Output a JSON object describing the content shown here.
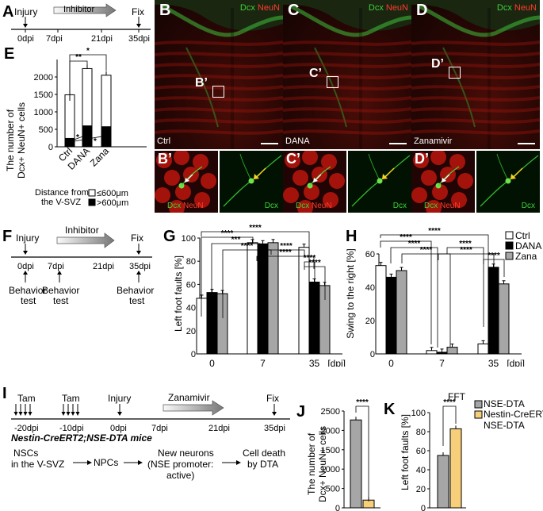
{
  "panels": {
    "A": "A",
    "B": "B",
    "C": "C",
    "D": "D",
    "E": "E",
    "F": "F",
    "G": "G",
    "H": "H",
    "I": "I",
    "J": "J",
    "K": "K"
  },
  "timelineA": {
    "injury": "Injury",
    "inhibitor": "Inhibitor",
    "fix": "Fix",
    "ticks": [
      "0dpi",
      "7dpi",
      "21dpi",
      "35dpi"
    ]
  },
  "micro": {
    "dcx": "Dcx",
    "neun": "NeuN",
    "B_cond": "Ctrl",
    "C_cond": "DANA",
    "D_cond": "Zanamivir",
    "B_inset": "B’",
    "C_inset": "C’",
    "D_inset": "D’"
  },
  "timelineF": {
    "injury": "Injury",
    "inhibitor": "Inhibitor",
    "fix": "Fix",
    "ticks": [
      "0dpi",
      "7dpi",
      "21dpi",
      "35dpi"
    ],
    "behavior": [
      "Behavior",
      "test"
    ]
  },
  "timelineI": {
    "tam": "Tam",
    "injury": "Injury",
    "zana": "Zanamivir",
    "fix": "Fix",
    "ticks": [
      "-20dpi",
      "-10dpi",
      "0dpi",
      "7dpi",
      "21dpi",
      "35dpi"
    ],
    "mouse": "Nestin-CreERT2;NSE-DTA mice",
    "flow1": [
      "NSCs",
      "in the V-SVZ"
    ],
    "flow2": "NPCs",
    "flow3": [
      "New neurons",
      "(NSE promoter:",
      "active)"
    ],
    "flow4": [
      "Cell death",
      "by DTA"
    ]
  },
  "legendE": {
    "title": [
      "Distance from",
      "the V-SVZ"
    ],
    "items": [
      "≤600μm",
      ">600μm"
    ]
  },
  "legendGH": [
    "Ctrl",
    "DANA",
    "Zana"
  ],
  "legendJK": [
    "NSE-DTA",
    "Nestin-CreERT2;",
    "NSE-DTA"
  ],
  "colors": {
    "ctrl": "#ffffff",
    "dana": "#000000",
    "zana": "#a6a6a6",
    "nse": "#a6a6a6",
    "nestin": "#f7cf7a"
  },
  "chart_data": [
    {
      "id": "E",
      "type": "bar",
      "stacked": true,
      "categories": [
        "Ctrl",
        "DANA",
        "Zana"
      ],
      "ylabel": "The number of Dcx+ NeuN+ cells",
      "ylim": [
        0,
        2500
      ],
      "yticks": [
        0,
        500,
        1000,
        1500,
        2000
      ],
      "series": [
        {
          "name": ">600μm",
          "values": [
            240,
            600,
            575
          ]
        },
        {
          "name": "≤600μm",
          "values": [
            1250,
            1640,
            1475
          ]
        }
      ],
      "totals": [
        1490,
        2240,
        2050
      ],
      "annotations": [
        "**",
        "*",
        "*",
        "*"
      ]
    },
    {
      "id": "G",
      "type": "bar",
      "categories": [
        "0",
        "7",
        "35"
      ],
      "xunit": "[dpi]",
      "ylabel": "Left foot faults [%]",
      "ylim": [
        0,
        100
      ],
      "yticks": [
        0,
        20,
        40,
        60,
        80,
        100
      ],
      "series": [
        {
          "name": "Ctrl",
          "values": [
            48,
            96,
            92
          ]
        },
        {
          "name": "DANA",
          "values": [
            53,
            95,
            62
          ]
        },
        {
          "name": "Zana",
          "values": [
            52,
            96,
            59
          ]
        }
      ],
      "annotations": [
        "****",
        "****",
        "***",
        "****",
        "****",
        "****",
        "****",
        "****"
      ]
    },
    {
      "id": "H",
      "type": "bar",
      "categories": [
        "0",
        "7",
        "35"
      ],
      "xunit": "[dpi]",
      "ylabel": "Swing to the right [%]",
      "ylim": [
        0,
        60
      ],
      "yticks": [
        0,
        20,
        40,
        60
      ],
      "series": [
        {
          "name": "Ctrl",
          "values": [
            53,
            2,
            6
          ]
        },
        {
          "name": "DANA",
          "values": [
            46,
            1,
            52
          ]
        },
        {
          "name": "Zana",
          "values": [
            50,
            4,
            42
          ]
        }
      ],
      "annotations": [
        "****",
        "****",
        "****",
        "****",
        "****",
        "****",
        "****"
      ]
    },
    {
      "id": "J",
      "type": "bar",
      "categories": [
        "NSE-DTA",
        "Nestin-CreERT2;NSE-DTA"
      ],
      "ylabel": "The number of Dcx+ NeuN+ cells",
      "ylim": [
        0,
        2500
      ],
      "yticks": [
        0,
        500,
        1000,
        1500,
        2000,
        2500
      ],
      "values": [
        2270,
        200
      ],
      "annotations": [
        "****"
      ]
    },
    {
      "id": "K",
      "type": "bar",
      "categories": [
        "NSE-DTA",
        "Nestin-CreERT2;NSE-DTA"
      ],
      "title": "FFT",
      "ylabel": "Left foot faults [%]",
      "ylim": [
        0,
        100
      ],
      "yticks": [
        0,
        20,
        40,
        60,
        80,
        100
      ],
      "values": [
        55,
        83
      ],
      "annotations": [
        "****"
      ]
    }
  ]
}
